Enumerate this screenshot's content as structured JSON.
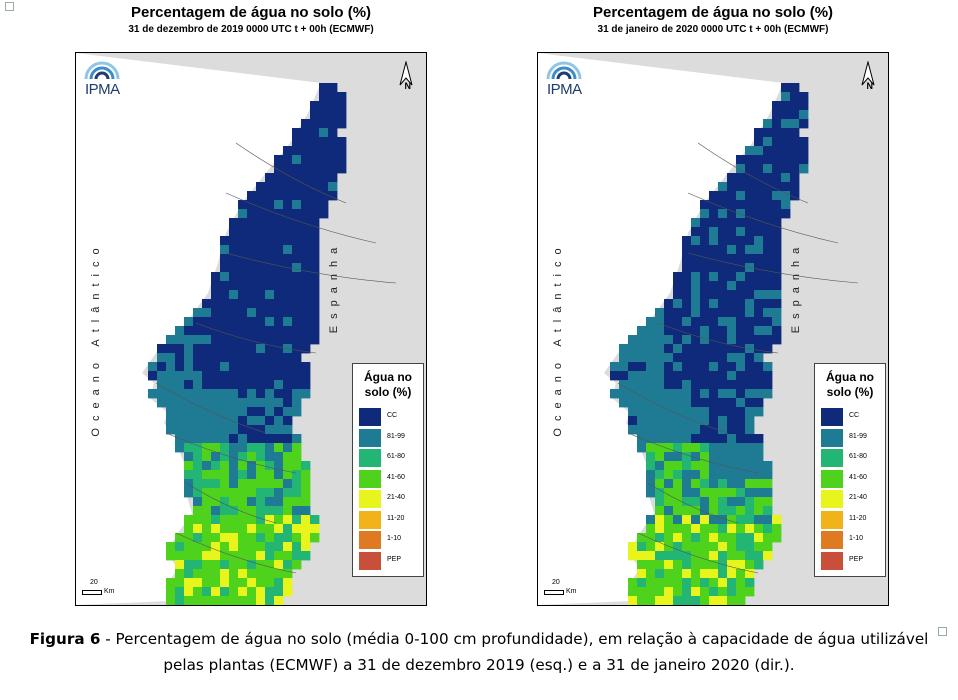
{
  "maps": [
    {
      "title": "Percentagem de água no solo (%)",
      "subtitle": "31 de dezembro de 2019 0000 UTC t + 00h (ECMWF)",
      "logo": "IPMA",
      "north": "N",
      "ocean_label": "Oceano Atlântico",
      "country_label": "Espanha",
      "scale": {
        "value": "20",
        "unit": "Km"
      },
      "dryness": 0.0
    },
    {
      "title": "Percentagem de água no solo (%)",
      "subtitle": "31 de janeiro de 2020 0000 UTC t + 00h (ECMWF)",
      "logo": "IPMA",
      "north": "N",
      "ocean_label": "Oceano Atlântico",
      "country_label": "Espanha",
      "scale": {
        "value": "20",
        "unit": "Km"
      },
      "dryness": 0.35
    }
  ],
  "legend": {
    "title": "Água no solo (%)",
    "classes": [
      {
        "label": "CC",
        "color": "#0f2a7a"
      },
      {
        "label": "81-99",
        "color": "#1f7a94"
      },
      {
        "label": "61-80",
        "color": "#22b573"
      },
      {
        "label": "41-60",
        "color": "#4fd21c"
      },
      {
        "label": "21-40",
        "color": "#e8f51c"
      },
      {
        "label": "11-20",
        "color": "#f2b31a"
      },
      {
        "label": "1-10",
        "color": "#e07a22"
      },
      {
        "label": "PEP",
        "color": "#c8503a"
      }
    ]
  },
  "caption": {
    "label": "Figura 6",
    "text": " - Percentagem de água no solo (média 0-100 cm profundidade), em relação à capacidade de água utilizável pelas plantas (ECMWF) a 31 de dezembro 2019 (esq.) e a 31 de janeiro 2020 (dir.)."
  }
}
